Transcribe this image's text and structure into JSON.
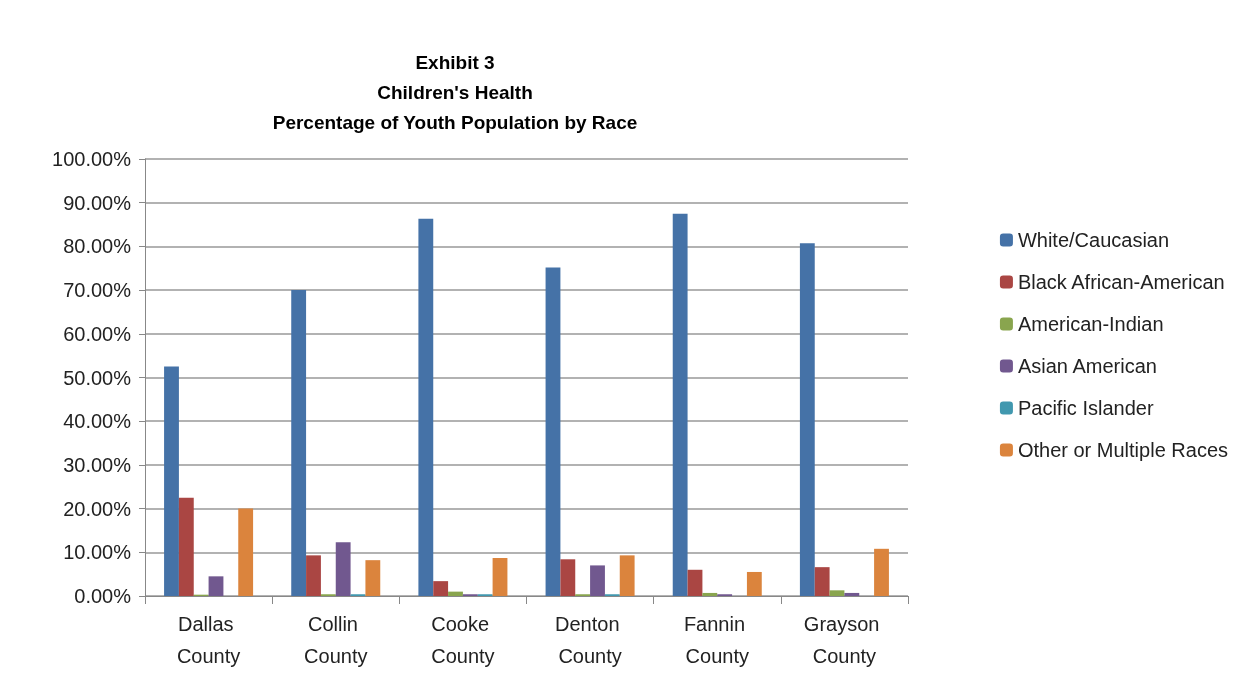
{
  "chart_data": {
    "type": "bar",
    "title": "Exhibit 3\nChildren's Health\nPercentage of Youth Population by Race",
    "categories": [
      "Dallas County",
      "Collin County",
      "Cooke County",
      "Denton County",
      "Fannin County",
      "Grayson County"
    ],
    "series": [
      {
        "name": "White/Caucasian",
        "color": "#4572a7",
        "values": [
          52.5,
          70,
          86.3,
          75.2,
          87.5,
          80.7
        ]
      },
      {
        "name": "Black African-American",
        "color": "#aa4643",
        "values": [
          22.5,
          9.3,
          3.4,
          8.4,
          6.0,
          6.6
        ]
      },
      {
        "name": "American-Indian",
        "color": "#89a54e",
        "values": [
          0.3,
          0.4,
          1.0,
          0.4,
          0.7,
          1.3
        ]
      },
      {
        "name": "Asian American",
        "color": "#71588f",
        "values": [
          4.5,
          12.3,
          0.4,
          7.0,
          0.4,
          0.7
        ]
      },
      {
        "name": "Pacific Islander",
        "color": "#4198af",
        "values": [
          null,
          0.4,
          0.4,
          0.4,
          null,
          null
        ]
      },
      {
        "name": "Other or Multiple Races",
        "color": "#db843d",
        "values": [
          20,
          8.2,
          8.7,
          9.3,
          5.5,
          10.8
        ]
      }
    ],
    "ylim": [
      0,
      100
    ],
    "yticks": [
      {
        "value": 0,
        "label": "0.00%"
      },
      {
        "value": 10,
        "label": "10.00%"
      },
      {
        "value": 20,
        "label": "20.00%"
      },
      {
        "value": 30,
        "label": "30.00%"
      },
      {
        "value": 40,
        "label": "40.00%"
      },
      {
        "value": 50,
        "label": "50.00%"
      },
      {
        "value": 60,
        "label": "60.00%"
      },
      {
        "value": 70,
        "label": "70.00%"
      },
      {
        "value": 80,
        "label": "80.00%"
      },
      {
        "value": 90,
        "label": "90.00%"
      },
      {
        "value": 100,
        "label": "100.00%"
      }
    ],
    "grid": "y",
    "legend": "right"
  }
}
